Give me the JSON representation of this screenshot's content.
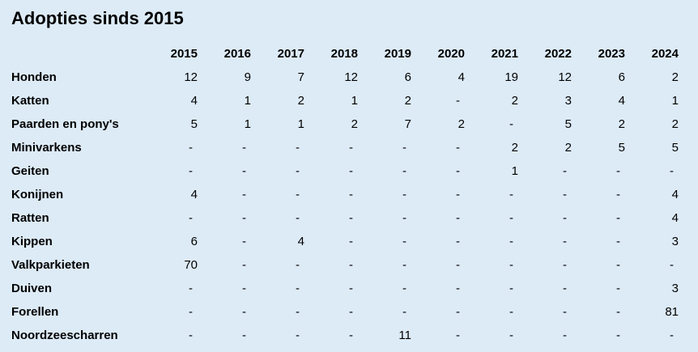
{
  "colors": {
    "background": "#ddebf7",
    "text": "#000000"
  },
  "chart_data": {
    "type": "table",
    "title": "Adopties sinds 2015",
    "columns": [
      "2015",
      "2016",
      "2017",
      "2018",
      "2019",
      "2020",
      "2021",
      "2022",
      "2023",
      "2024"
    ],
    "rows": [
      {
        "label": "Honden",
        "values": [
          12,
          9,
          7,
          12,
          6,
          4,
          19,
          12,
          6,
          2
        ]
      },
      {
        "label": "Katten",
        "values": [
          4,
          1,
          2,
          1,
          2,
          "-",
          2,
          3,
          4,
          1
        ]
      },
      {
        "label": "Paarden en pony's",
        "values": [
          5,
          1,
          1,
          2,
          7,
          2,
          "-",
          5,
          2,
          2
        ]
      },
      {
        "label": "Minivarkens",
        "values": [
          "-",
          "-",
          "-",
          "-",
          "-",
          "-",
          2,
          2,
          5,
          5
        ]
      },
      {
        "label": "Geiten",
        "values": [
          "-",
          "-",
          "-",
          "-",
          "-",
          "-",
          1,
          "-",
          "-",
          "-"
        ]
      },
      {
        "label": "Konijnen",
        "values": [
          4,
          "-",
          "-",
          "-",
          "-",
          "-",
          "-",
          "-",
          "-",
          4
        ]
      },
      {
        "label": "Ratten",
        "values": [
          "-",
          "-",
          "-",
          "-",
          "-",
          "-",
          "-",
          "-",
          "-",
          4
        ]
      },
      {
        "label": "Kippen",
        "values": [
          6,
          "-",
          4,
          "-",
          "-",
          "-",
          "-",
          "-",
          "-",
          3
        ]
      },
      {
        "label": "Valkparkieten",
        "values": [
          70,
          "-",
          "-",
          "-",
          "-",
          "-",
          "-",
          "-",
          "-",
          "-"
        ]
      },
      {
        "label": "Duiven",
        "values": [
          "-",
          "-",
          "-",
          "-",
          "-",
          "-",
          "-",
          "-",
          "-",
          3
        ]
      },
      {
        "label": "Forellen",
        "values": [
          "-",
          "-",
          "-",
          "-",
          "-",
          "-",
          "-",
          "-",
          "-",
          81
        ]
      },
      {
        "label": "Noordzeescharren",
        "values": [
          "-",
          "-",
          "-",
          "-",
          11,
          "-",
          "-",
          "-",
          "-",
          "-"
        ]
      }
    ]
  }
}
